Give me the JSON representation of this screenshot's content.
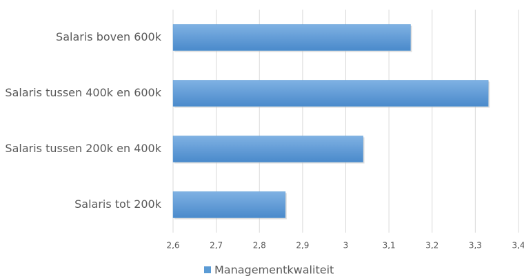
{
  "chart_data": {
    "type": "barh",
    "categories": [
      "Salaris boven 600k",
      "Salaris tussen 400k en 600k",
      "Salaris tussen 200k en 400k",
      "Salaris tot 200k"
    ],
    "series": [
      {
        "name": "Managementkwaliteit",
        "color": "#5b9bd5",
        "values": [
          3.15,
          3.33,
          3.04,
          2.86
        ]
      }
    ],
    "xlim": [
      2.6,
      3.4
    ],
    "xticks": [
      {
        "value": 2.6,
        "label": "2,6"
      },
      {
        "value": 2.7,
        "label": "2,7"
      },
      {
        "value": 2.8,
        "label": "2,8"
      },
      {
        "value": 2.9,
        "label": "2,9"
      },
      3,
      {
        "value": 3.1,
        "label": "3,1"
      },
      {
        "value": 3.2,
        "label": "3,2"
      },
      {
        "value": 3.3,
        "label": "3,3"
      },
      {
        "value": 3.4,
        "label": "3,4"
      }
    ],
    "grid": true,
    "legend": "bottom"
  }
}
